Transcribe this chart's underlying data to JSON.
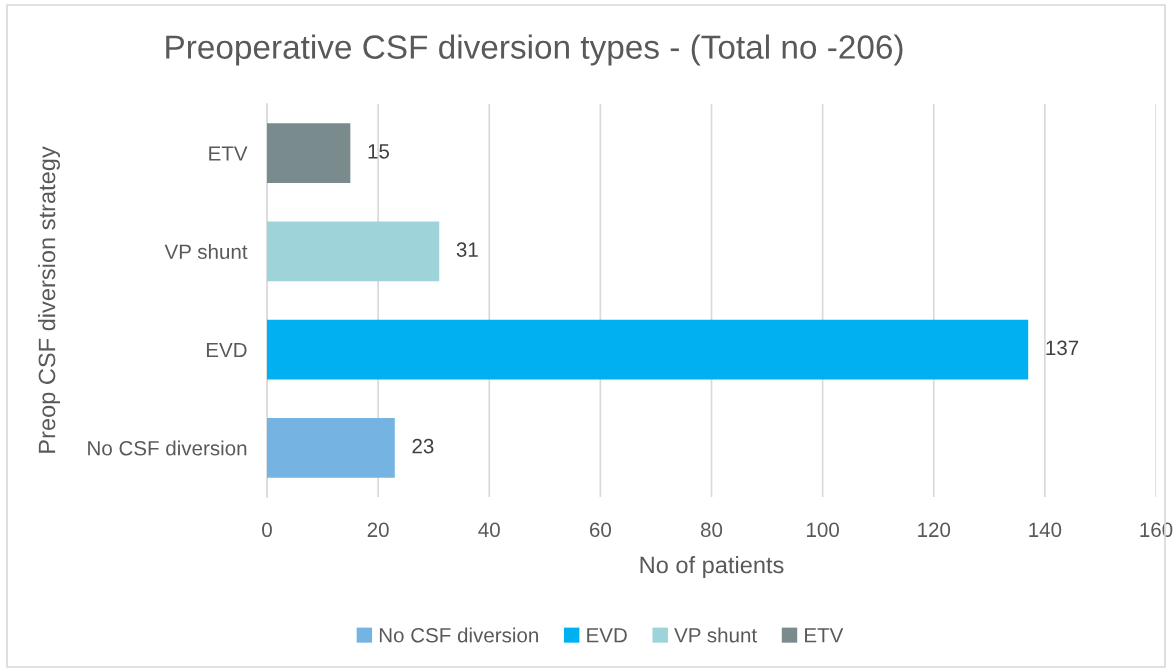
{
  "chart_data": {
    "type": "bar",
    "orientation": "horizontal",
    "title": "Preoperative CSF diversion types - (Total no -206)",
    "xlabel": "No of patients",
    "ylabel": "Preop CSF diversion strategy",
    "categories": [
      "ETV",
      "VP shunt",
      "EVD",
      "No CSF diversion"
    ],
    "series": [
      {
        "name": "No CSF diversion",
        "color": "#75b3e3",
        "values": [
          null,
          null,
          null,
          23
        ]
      },
      {
        "name": "EVD",
        "color": "#00b0f0",
        "values": [
          null,
          null,
          137,
          null
        ]
      },
      {
        "name": "VP shunt",
        "color": "#9dd3d9",
        "values": [
          null,
          31,
          null,
          null
        ]
      },
      {
        "name": "ETV",
        "color": "#7a8b8e",
        "values": [
          15,
          null,
          null,
          null
        ]
      }
    ],
    "xlim": [
      0,
      160
    ],
    "xticks": [
      0,
      20,
      40,
      60,
      80,
      100,
      120,
      140,
      160
    ],
    "grid": "x",
    "legend": "bottom",
    "data_labels": true
  }
}
